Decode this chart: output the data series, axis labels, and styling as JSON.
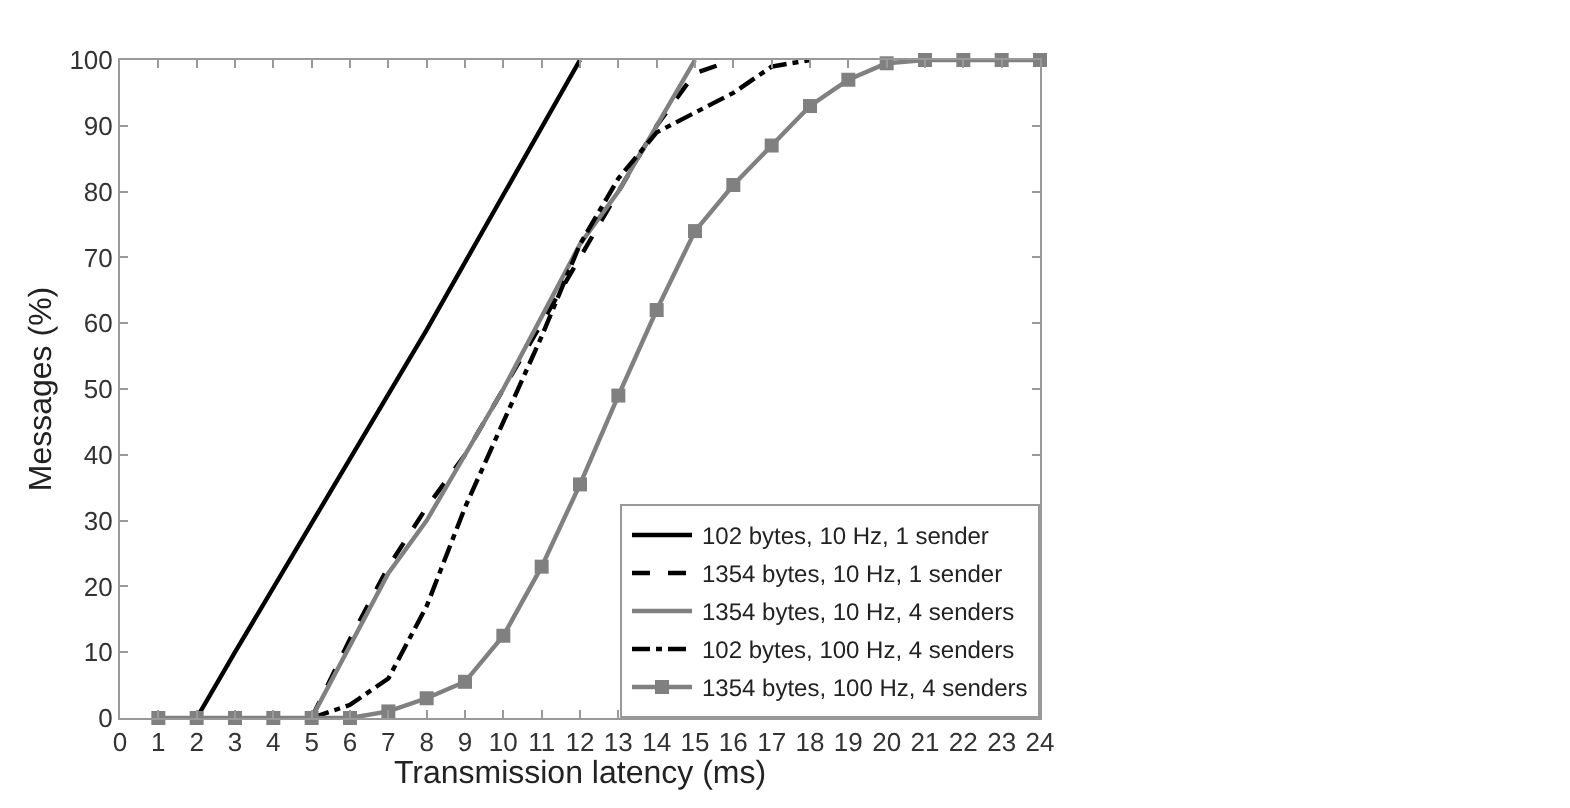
{
  "chart_data": {
    "type": "line",
    "xlabel": "Transmission latency (ms)",
    "ylabel": "Messages (%)",
    "xlim": [
      0,
      24
    ],
    "xticks": [
      0,
      1,
      2,
      3,
      4,
      5,
      6,
      7,
      8,
      9,
      10,
      11,
      12,
      13,
      14,
      15,
      16,
      17,
      18,
      19,
      20,
      21,
      22,
      23,
      24
    ],
    "ylim": [
      0,
      100
    ],
    "yticks": [
      0,
      10,
      20,
      30,
      40,
      50,
      60,
      70,
      80,
      90,
      100
    ],
    "legend": "bottom right",
    "marker": "none",
    "series": [
      {
        "name": "102 bytes, 10 Hz, 1 sender",
        "color": "#000000",
        "line_style": "solid",
        "x": [
          2,
          3,
          8,
          12
        ],
        "values": [
          0,
          10,
          59,
          100
        ]
      },
      {
        "name": "1354 bytes, 10 Hz, 1 sender",
        "color": "#000000",
        "line_style": "dashed",
        "x": [
          5,
          6,
          7,
          8,
          9,
          10,
          11,
          12,
          13,
          14,
          15,
          16
        ],
        "values": [
          0,
          12,
          23,
          32,
          40,
          50,
          60,
          70,
          80,
          90,
          98,
          100
        ]
      },
      {
        "name": "1354 bytes, 10 Hz, 4 senders",
        "color": "#808080",
        "line_style": "solid",
        "x": [
          5,
          7,
          8,
          10,
          12,
          13,
          15
        ],
        "values": [
          0,
          22,
          30,
          50,
          72,
          80,
          100
        ]
      },
      {
        "name": "102 bytes, 100 Hz, 4 senders",
        "color": "#000000",
        "line_style": "dashdot",
        "x": [
          5,
          6,
          7,
          8,
          9,
          10,
          11,
          12,
          13,
          14,
          15,
          16,
          17,
          18
        ],
        "values": [
          0,
          2,
          6,
          17,
          32,
          45,
          58,
          72,
          82,
          89,
          92,
          95,
          99,
          100
        ]
      },
      {
        "name": "1354 bytes, 100 Hz, 4 senders",
        "color": "#808080",
        "line_style": "solid",
        "marker": "square",
        "x": [
          1,
          2,
          3,
          4,
          5,
          6,
          7,
          8,
          9,
          10,
          11,
          12,
          13,
          14,
          15,
          16,
          17,
          18,
          19,
          20,
          21,
          22,
          23,
          24
        ],
        "values": [
          0,
          0,
          0,
          0,
          0,
          0,
          1,
          3,
          5.5,
          12.5,
          23,
          35.5,
          49,
          62,
          74,
          81,
          87,
          93,
          97,
          99.5,
          100,
          100,
          100,
          100
        ]
      }
    ]
  }
}
